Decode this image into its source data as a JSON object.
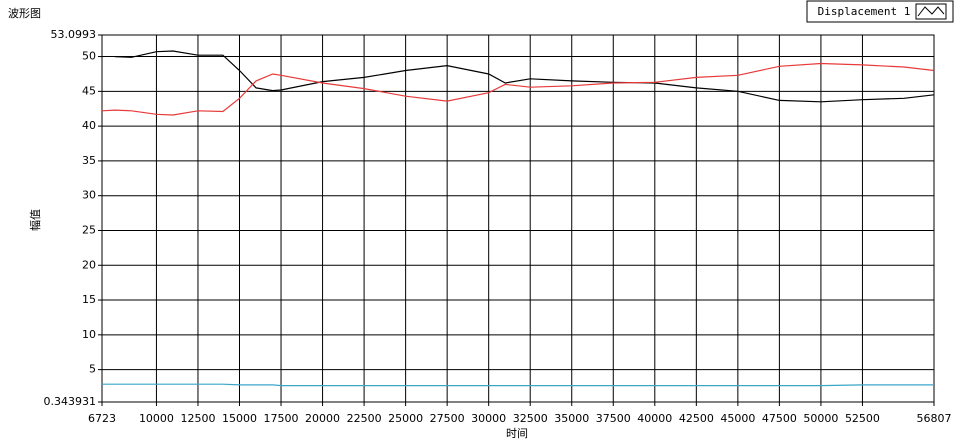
{
  "chart_data": {
    "type": "line",
    "title": "波形图",
    "xlabel": "时间",
    "ylabel": "幅值",
    "x": [
      6723,
      7500,
      8500,
      10000,
      11000,
      12500,
      14000,
      15000,
      16000,
      17000,
      17500,
      20000,
      22500,
      25000,
      27500,
      30000,
      31000,
      32500,
      35000,
      37500,
      40000,
      42500,
      45000,
      47500,
      50000,
      52500,
      55000,
      56807
    ],
    "series": [
      {
        "name": "Displacement 1",
        "color": "#000000",
        "values": [
          null,
          50,
          49.9,
          50.7,
          50.8,
          50.2,
          50.2,
          48,
          45.5,
          45.1,
          45.2,
          46.4,
          47,
          48,
          48.7,
          47.5,
          46.2,
          46.8,
          46.5,
          46.3,
          46.2,
          45.5,
          45,
          43.7,
          43.5,
          43.8,
          44,
          44.5
        ]
      },
      {
        "color": "#e83a3a",
        "values": [
          42.2,
          42.3,
          42.2,
          41.7,
          41.6,
          42.2,
          42.1,
          44,
          46.5,
          47.5,
          47.3,
          46.2,
          45.4,
          44.3,
          43.6,
          44.8,
          46,
          45.6,
          45.8,
          46.2,
          46.3,
          47,
          47.3,
          48.6,
          49,
          48.8,
          48.5,
          48
        ]
      },
      {
        "color": "#3aa6c8",
        "values": [
          2.9,
          2.9,
          2.9,
          2.9,
          2.9,
          2.9,
          2.9,
          2.8,
          2.8,
          2.8,
          2.7,
          2.7,
          2.7,
          2.7,
          2.7,
          2.7,
          2.7,
          2.7,
          2.7,
          2.7,
          2.7,
          2.7,
          2.7,
          2.7,
          2.7,
          2.8,
          2.8,
          2.8
        ]
      }
    ],
    "xlim": [
      6723,
      56807
    ],
    "xticks": [
      6723,
      10000,
      12500,
      15000,
      17500,
      20000,
      22500,
      25000,
      27500,
      30000,
      32500,
      35000,
      37500,
      40000,
      42500,
      45000,
      47500,
      50000,
      52500,
      56807
    ],
    "ylim": [
      0.343931,
      53.0993
    ],
    "yticks": [
      0.343931,
      5,
      10,
      15,
      20,
      25,
      30,
      35,
      40,
      45,
      50,
      53.0993
    ],
    "grid": true
  }
}
